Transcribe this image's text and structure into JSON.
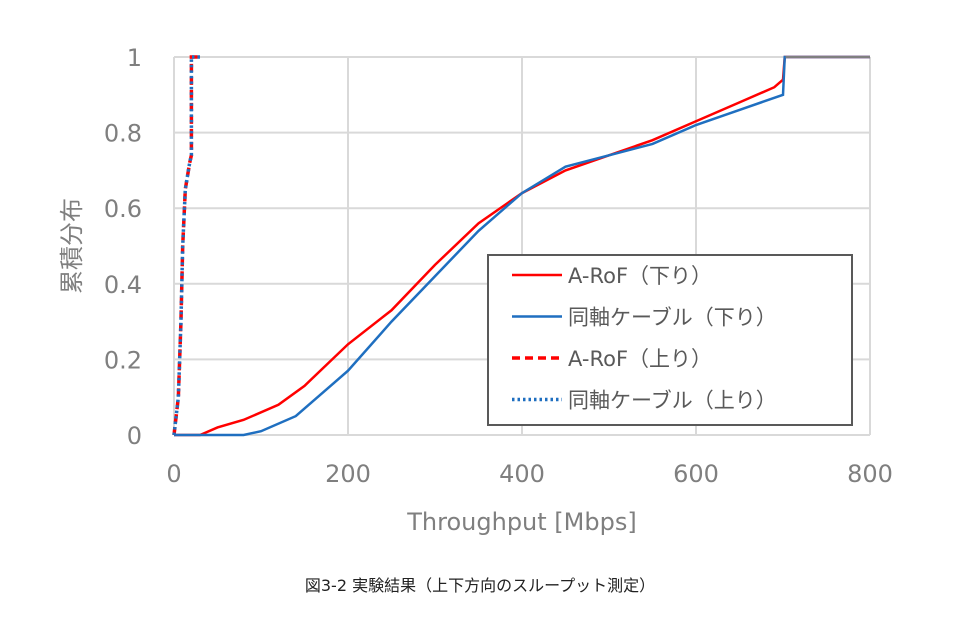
{
  "chart_data": {
    "type": "line",
    "title": "",
    "caption": "図3-2 実験結果（上下方向のスループット測定）",
    "xlabel": "Throughput [Mbps]",
    "ylabel": "累積分布",
    "xlim": [
      0,
      800
    ],
    "ylim": [
      0,
      1
    ],
    "xticks": [
      "0",
      "200",
      "400",
      "600",
      "800"
    ],
    "yticks": [
      "0",
      "0.2",
      "0.4",
      "0.6",
      "0.8",
      "1"
    ],
    "grid": true,
    "legend_position": "lower right inside",
    "series": [
      {
        "name": "A-RoF（下り）",
        "color": "#ff0000",
        "style": "solid",
        "x": [
          0,
          30,
          50,
          80,
          120,
          150,
          200,
          250,
          300,
          350,
          400,
          450,
          500,
          550,
          600,
          650,
          690,
          700,
          702,
          800
        ],
        "y": [
          0,
          0,
          0.02,
          0.04,
          0.08,
          0.13,
          0.24,
          0.33,
          0.45,
          0.56,
          0.64,
          0.7,
          0.74,
          0.78,
          0.83,
          0.88,
          0.92,
          0.94,
          1.0,
          1.0
        ]
      },
      {
        "name": "同軸ケーブル（下り）",
        "color": "#1f6fc0",
        "style": "solid",
        "x": [
          0,
          80,
          100,
          140,
          200,
          250,
          300,
          350,
          400,
          450,
          500,
          550,
          600,
          650,
          700,
          702,
          800
        ],
        "y": [
          0,
          0,
          0.01,
          0.05,
          0.17,
          0.3,
          0.42,
          0.54,
          0.64,
          0.71,
          0.74,
          0.77,
          0.82,
          0.86,
          0.9,
          1.0,
          1.0
        ]
      },
      {
        "name": "A-RoF（上り）",
        "color": "#ff0000",
        "style": "dashed",
        "x": [
          0,
          5,
          8,
          10,
          13,
          18,
          20,
          20,
          30
        ],
        "y": [
          0,
          0.1,
          0.3,
          0.5,
          0.65,
          0.72,
          0.74,
          1.0,
          1.0
        ]
      },
      {
        "name": "同軸ケーブル（上り）",
        "color": "#1f6fc0",
        "style": "dotted",
        "x": [
          0,
          5,
          8,
          10,
          13,
          18,
          20,
          20,
          30
        ],
        "y": [
          0,
          0.1,
          0.3,
          0.5,
          0.65,
          0.72,
          0.74,
          1.0,
          1.0
        ]
      }
    ]
  }
}
